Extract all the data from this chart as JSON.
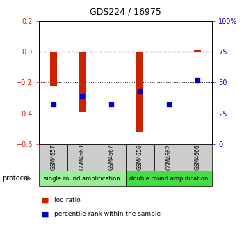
{
  "title": "GDS224 / 16975",
  "samples": [
    "GSM4657",
    "GSM4663",
    "GSM4667",
    "GSM4656",
    "GSM4662",
    "GSM4666"
  ],
  "log_ratio": [
    -0.225,
    -0.395,
    -0.005,
    -0.52,
    -0.005,
    0.01
  ],
  "percentile_rank_pct": [
    32,
    39,
    32,
    43,
    32,
    52
  ],
  "ylim_left": [
    -0.6,
    0.2
  ],
  "ylim_right": [
    0,
    100
  ],
  "yticks_left": [
    -0.6,
    -0.4,
    -0.2,
    0.0,
    0.2
  ],
  "yticks_right": [
    0,
    25,
    50,
    75,
    100
  ],
  "ytick_labels_right": [
    "0",
    "25",
    "50",
    "75",
    "100%"
  ],
  "bar_color": "#cc2200",
  "dot_color": "#0000cc",
  "protocol_groups": [
    {
      "label": "single round amplification",
      "start": 0,
      "end": 3,
      "color": "#99ee99"
    },
    {
      "label": "double round amplification",
      "start": 3,
      "end": 6,
      "color": "#44dd44"
    }
  ],
  "sample_box_color": "#cccccc",
  "protocol_label": "protocol",
  "legend_log_ratio": "log ratio",
  "legend_percentile": "percentile rank within the sample",
  "hline_0_color": "#cc2200",
  "hline_dotted_color": "#000000",
  "title_fontsize": 9,
  "tick_fontsize": 7,
  "bar_width": 0.25
}
